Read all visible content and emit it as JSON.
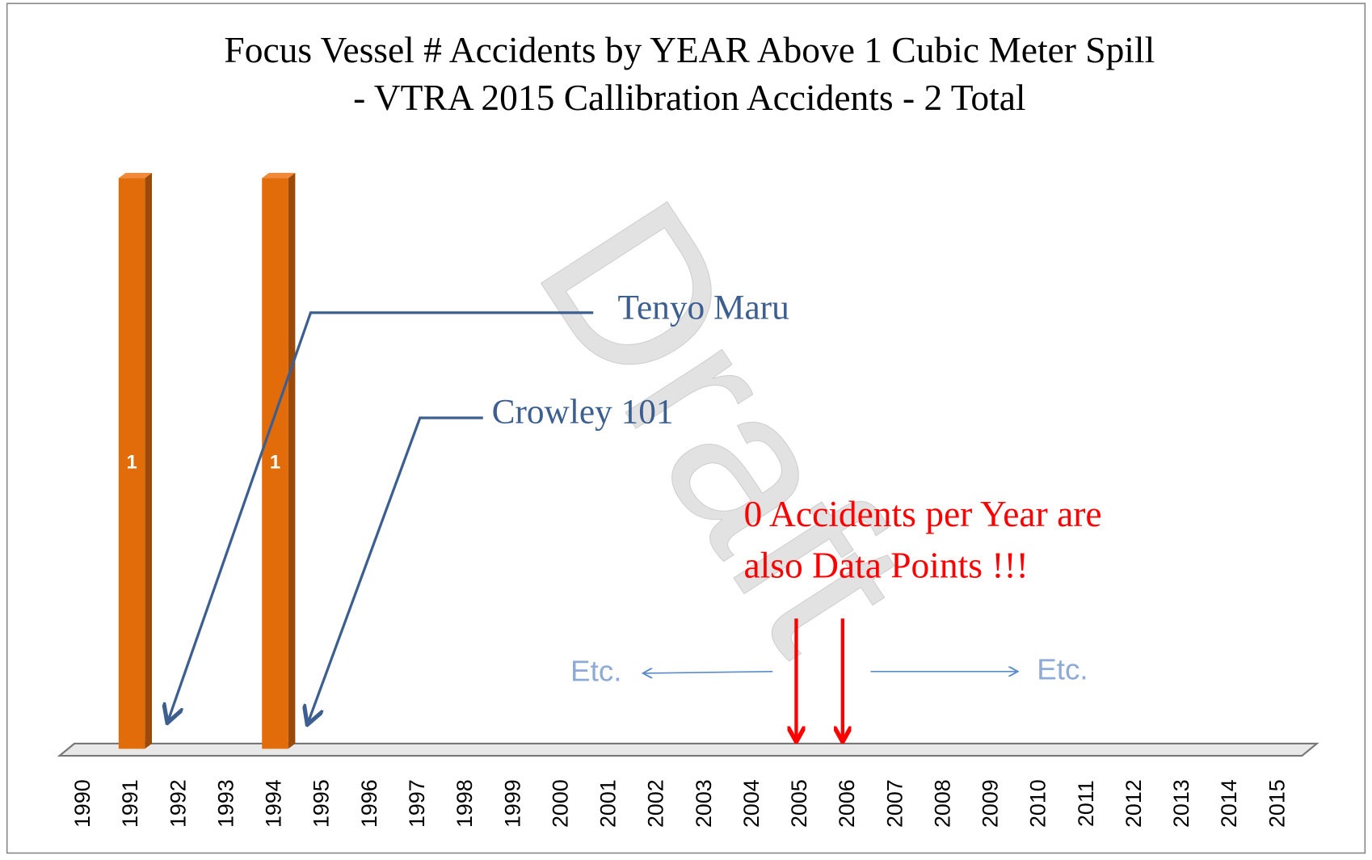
{
  "chart_data": {
    "type": "bar",
    "title": "Focus Vessel # Accidents by YEAR Above 1 Cubic Meter Spill",
    "subtitle": "- VTRA 2015 Callibration Accidents - 2 Total",
    "categories": [
      "1990",
      "1991",
      "1992",
      "1993",
      "1994",
      "1995",
      "1996",
      "1997",
      "1998",
      "1999",
      "2000",
      "2001",
      "2002",
      "2003",
      "2004",
      "2005",
      "2006",
      "2007",
      "2008",
      "2009",
      "2010",
      "2011",
      "2012",
      "2013",
      "2014",
      "2015"
    ],
    "values": [
      0,
      1,
      0,
      0,
      1,
      0,
      0,
      0,
      0,
      0,
      0,
      0,
      0,
      0,
      0,
      0,
      0,
      0,
      0,
      0,
      0,
      0,
      0,
      0,
      0,
      0
    ],
    "color": "#e36c0a",
    "ylim": [
      0,
      1
    ],
    "annotations": [
      "Tenyo Maru",
      "Crowley 101",
      "0 Accidents per Year are",
      "also Data Points !!!",
      "Etc.",
      "Etc."
    ],
    "watermark": "Draft"
  }
}
